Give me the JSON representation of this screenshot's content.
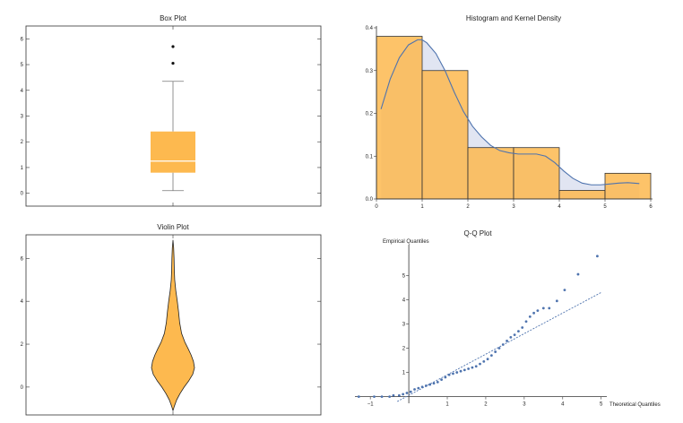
{
  "colors": {
    "accent": "#fdb94f",
    "accent_stroke": "#333333",
    "density_fill": "#e1e5f2",
    "series_blue": "#4e73ae",
    "median": "#ffffff"
  },
  "chart_data": [
    {
      "type": "box",
      "title": "Box Plot",
      "ylim": [
        -0.5,
        6.5
      ],
      "y_ticks": [
        0,
        1,
        2,
        3,
        4,
        5,
        6
      ],
      "stats": {
        "min": 0.1,
        "q1": 0.8,
        "median": 1.25,
        "q3": 2.4,
        "max": 4.35
      },
      "outliers": [
        5.05,
        5.7
      ]
    },
    {
      "type": "bar",
      "title": "Histogram and Kernel Density",
      "xlim": [
        0,
        6
      ],
      "ylim": [
        0,
        0.4
      ],
      "x_ticks": [
        0,
        1,
        2,
        3,
        4,
        5,
        6
      ],
      "y_ticks": [
        0.0,
        0.1,
        0.2,
        0.3,
        0.4
      ],
      "bins": [
        {
          "x0": 0,
          "x1": 1,
          "value": 0.38
        },
        {
          "x0": 1,
          "x1": 2,
          "value": 0.3
        },
        {
          "x0": 2,
          "x1": 3,
          "value": 0.12
        },
        {
          "x0": 3,
          "x1": 4,
          "value": 0.12
        },
        {
          "x0": 4,
          "x1": 5,
          "value": 0.02
        },
        {
          "x0": 5,
          "x1": 6,
          "value": 0.06
        }
      ],
      "density": {
        "x": [
          0.1,
          0.3,
          0.5,
          0.7,
          0.9,
          1.0,
          1.1,
          1.3,
          1.5,
          1.7,
          1.9,
          2.1,
          2.3,
          2.5,
          2.7,
          2.9,
          3.1,
          3.3,
          3.5,
          3.7,
          3.9,
          4.1,
          4.3,
          4.5,
          4.7,
          4.9,
          5.1,
          5.3,
          5.5,
          5.75
        ],
        "y": [
          0.21,
          0.28,
          0.33,
          0.36,
          0.372,
          0.372,
          0.365,
          0.34,
          0.3,
          0.25,
          0.205,
          0.17,
          0.145,
          0.125,
          0.113,
          0.108,
          0.105,
          0.105,
          0.105,
          0.1,
          0.085,
          0.065,
          0.048,
          0.037,
          0.033,
          0.033,
          0.035,
          0.037,
          0.038,
          0.036
        ]
      }
    },
    {
      "type": "violin",
      "title": "Violin Plot",
      "ylim": [
        -1.3,
        7.1
      ],
      "y_ticks": [
        0,
        2,
        4,
        6
      ],
      "profile": {
        "y": [
          -1.1,
          -0.9,
          -0.6,
          -0.3,
          0.0,
          0.3,
          0.6,
          0.9,
          1.2,
          1.5,
          1.8,
          2.1,
          2.5,
          3.0,
          3.5,
          4.0,
          4.5,
          5.0,
          5.5,
          6.0,
          6.5,
          6.85
        ],
        "half_width": [
          0.0,
          0.06,
          0.17,
          0.33,
          0.52,
          0.74,
          0.92,
          1.0,
          0.95,
          0.84,
          0.7,
          0.55,
          0.4,
          0.31,
          0.26,
          0.2,
          0.13,
          0.08,
          0.06,
          0.05,
          0.03,
          0.0
        ]
      }
    },
    {
      "type": "scatter",
      "title": "Q-Q Plot",
      "xlabel": "Theoretical Quantiles",
      "ylabel": "Empirical Quantiles",
      "xlim": [
        -1.4,
        5.1
      ],
      "ylim": [
        -0.2,
        6.2
      ],
      "x_ticks": [
        -1,
        1,
        2,
        3,
        4,
        5
      ],
      "y_ticks": [
        1,
        2,
        3,
        4,
        5
      ],
      "reference_line": {
        "x": [
          -0.3,
          5.0
        ],
        "y": [
          -0.2,
          4.3
        ]
      },
      "points": {
        "x": [
          -1.3,
          -0.9,
          -0.7,
          -0.5,
          -0.4,
          -0.25,
          -0.15,
          -0.05,
          0.05,
          0.15,
          0.25,
          0.35,
          0.45,
          0.55,
          0.65,
          0.75,
          0.85,
          0.95,
          1.05,
          1.15,
          1.25,
          1.35,
          1.45,
          1.55,
          1.65,
          1.75,
          1.85,
          1.95,
          2.05,
          2.15,
          2.25,
          2.35,
          2.45,
          2.55,
          2.65,
          2.75,
          2.85,
          2.95,
          3.05,
          3.15,
          3.25,
          3.35,
          3.5,
          3.65,
          3.85,
          4.05,
          4.4,
          4.9
        ],
        "y": [
          0.0,
          0.0,
          0.0,
          0.0,
          0.05,
          0.05,
          0.1,
          0.15,
          0.2,
          0.3,
          0.35,
          0.4,
          0.45,
          0.5,
          0.55,
          0.6,
          0.7,
          0.8,
          0.9,
          0.95,
          1.0,
          1.05,
          1.1,
          1.15,
          1.2,
          1.25,
          1.35,
          1.45,
          1.55,
          1.7,
          1.85,
          2.0,
          2.15,
          2.3,
          2.45,
          2.55,
          2.7,
          2.85,
          3.1,
          3.3,
          3.45,
          3.55,
          3.65,
          3.65,
          3.95,
          4.4,
          5.05,
          5.8
        ]
      }
    }
  ]
}
